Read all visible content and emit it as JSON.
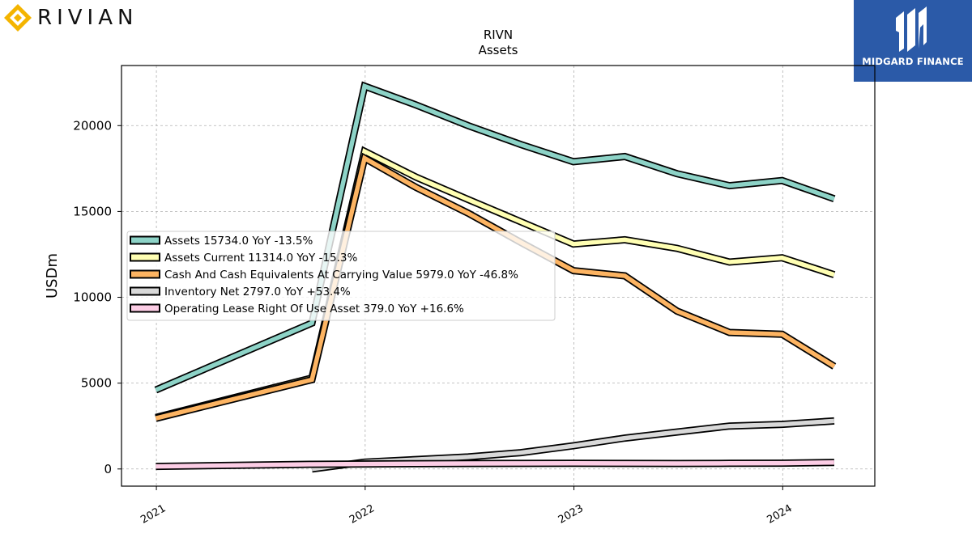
{
  "header": {
    "left_logo_text": "RIVIAN",
    "right_logo_text": "MIDGARD FINANCE"
  },
  "chart_data": {
    "type": "line",
    "title": "RIVN",
    "subtitle": "Assets",
    "xlabel": "",
    "ylabel": "USDm",
    "xlim": [
      "2020-11-01",
      "2024-06-10"
    ],
    "ylim": [
      -1000,
      23500
    ],
    "x_ticks": [
      "2021",
      "2022",
      "2023",
      "2024"
    ],
    "y_ticks": [
      0,
      5000,
      10000,
      15000,
      20000
    ],
    "grid": true,
    "legend_position": "upper-left",
    "series": [
      {
        "name": "Assets",
        "legend": "Assets  15734.0 YoY -13.5%",
        "color": "#8dd3c7",
        "points": [
          [
            "2020-12-31",
            4600
          ],
          [
            "2021-09-30",
            8500
          ],
          [
            "2021-12-31",
            22300
          ],
          [
            "2022-03-31",
            21200
          ],
          [
            "2022-06-30",
            20000
          ],
          [
            "2022-09-30",
            18900
          ],
          [
            "2022-12-31",
            17900
          ],
          [
            "2023-03-31",
            18200
          ],
          [
            "2023-06-30",
            17200
          ],
          [
            "2023-09-30",
            16500
          ],
          [
            "2023-12-31",
            16800
          ],
          [
            "2024-03-31",
            15734
          ]
        ]
      },
      {
        "name": "Assets Current",
        "legend": "Assets Current  11314.0 YoY -15.3%",
        "color": "#ffffb3",
        "points": [
          [
            "2020-12-31",
            3000
          ],
          [
            "2021-09-30",
            5300
          ],
          [
            "2021-12-31",
            18500
          ],
          [
            "2022-03-31",
            17000
          ],
          [
            "2022-06-30",
            15700
          ],
          [
            "2022-09-30",
            14400
          ],
          [
            "2022-12-31",
            13100
          ],
          [
            "2023-03-31",
            13350
          ],
          [
            "2023-06-30",
            12850
          ],
          [
            "2023-09-30",
            12050
          ],
          [
            "2023-12-31",
            12300
          ],
          [
            "2024-03-31",
            11314
          ]
        ]
      },
      {
        "name": "Cash And Cash Equivalents At Carrying Value",
        "legend": "Cash And Cash Equivalents At Carrying Value  5979.0 YoY -46.8%",
        "color": "#fdb462",
        "points": [
          [
            "2020-12-31",
            2950
          ],
          [
            "2021-09-30",
            5200
          ],
          [
            "2021-12-31",
            18100
          ],
          [
            "2022-03-31",
            16400
          ],
          [
            "2022-06-30",
            14900
          ],
          [
            "2022-09-30",
            13200
          ],
          [
            "2022-12-31",
            11550
          ],
          [
            "2023-03-31",
            11250
          ],
          [
            "2023-06-30",
            9200
          ],
          [
            "2023-09-30",
            7950
          ],
          [
            "2023-12-31",
            7850
          ],
          [
            "2024-03-31",
            5979
          ]
        ]
      },
      {
        "name": "Inventory Net",
        "legend": "Inventory Net  2797.0 YoY +53.4%",
        "color": "#d9d9d9",
        "points": [
          [
            "2021-09-30",
            0
          ],
          [
            "2021-12-31",
            400
          ],
          [
            "2022-03-31",
            550
          ],
          [
            "2022-06-30",
            700
          ],
          [
            "2022-09-30",
            950
          ],
          [
            "2022-12-31",
            1350
          ],
          [
            "2023-03-31",
            1800
          ],
          [
            "2023-06-30",
            2150
          ],
          [
            "2023-09-30",
            2500
          ],
          [
            "2023-12-31",
            2600
          ],
          [
            "2024-03-31",
            2797
          ]
        ]
      },
      {
        "name": "Operating Lease Right Of Use Asset",
        "legend": "Operating Lease Right Of Use Asset  379.0 YoY +16.6%",
        "color": "#fccde5",
        "points": [
          [
            "2020-12-31",
            150
          ],
          [
            "2021-09-30",
            270
          ],
          [
            "2021-12-31",
            290
          ],
          [
            "2022-03-31",
            310
          ],
          [
            "2022-06-30",
            320
          ],
          [
            "2022-09-30",
            325
          ],
          [
            "2022-12-31",
            330
          ],
          [
            "2023-03-31",
            325
          ],
          [
            "2023-06-30",
            320
          ],
          [
            "2023-09-30",
            330
          ],
          [
            "2023-12-31",
            340
          ],
          [
            "2024-03-31",
            379
          ]
        ]
      }
    ]
  }
}
